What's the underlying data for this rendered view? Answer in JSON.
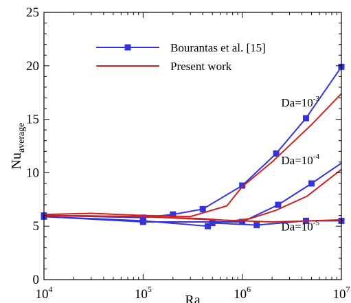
{
  "chart_data": {
    "type": "line",
    "xlabel": "Ra",
    "ylabel": "Nu",
    "ylabel_subscript": "average",
    "xscale": "log",
    "xlim": [
      10000,
      10000000
    ],
    "ylim": [
      0,
      25
    ],
    "grid": false,
    "legend_placement": "top-left",
    "x_ticks": [
      {
        "base": "10",
        "exp": "4",
        "value": 10000
      },
      {
        "base": "10",
        "exp": "5",
        "value": 100000
      },
      {
        "base": "10",
        "exp": "6",
        "value": 1000000
      },
      {
        "base": "10",
        "exp": "7",
        "value": 10000000
      }
    ],
    "y_ticks": [
      "0",
      "5",
      "10",
      "15",
      "20",
      "25"
    ],
    "legend": [
      {
        "label": "Bourantas et al. [15]",
        "color": "#3333dd",
        "marker": "square"
      },
      {
        "label": "Present work",
        "color": "#cc2222",
        "marker": "none"
      }
    ],
    "annotations": [
      {
        "base": "Da=10",
        "exp": "-3",
        "at": [
          6000000,
          16.2
        ]
      },
      {
        "base": "Da=10",
        "exp": "-4",
        "at": [
          6000000,
          10.8
        ]
      },
      {
        "base": "Da=10",
        "exp": "-5",
        "at": [
          6000000,
          4.6
        ]
      }
    ],
    "series": [
      {
        "name": "Bourantas et al. [15]",
        "group": "Da=10^-3",
        "color": "#3333dd",
        "marker": "square",
        "x": [
          10000,
          100000,
          200000,
          400000,
          1000000,
          2200000,
          4400000,
          10000000
        ],
        "y": [
          6.0,
          5.8,
          6.1,
          6.6,
          8.8,
          11.8,
          15.1,
          19.9
        ]
      },
      {
        "name": "Bourantas et al. [15]",
        "group": "Da=10^-4",
        "color": "#3333dd",
        "marker": "square",
        "x": [
          10000,
          100000,
          1000000,
          2300000,
          5000000,
          10000000
        ],
        "y": [
          5.9,
          5.4,
          5.4,
          7.0,
          9.0,
          10.9
        ],
        "markers_at": [
          0,
          1,
          2,
          3,
          4
        ]
      },
      {
        "name": "Bourantas et al. [15]",
        "group": "Da=10^-5",
        "color": "#3333dd",
        "marker": "square",
        "x": [
          10000,
          100000,
          450000,
          500000,
          1400000,
          4400000,
          10000000
        ],
        "y": [
          5.9,
          5.5,
          5.0,
          5.3,
          5.1,
          5.5,
          5.5
        ]
      },
      {
        "name": "Present work",
        "group": "Da=10^-3",
        "color": "#cc2222",
        "marker": "none",
        "x": [
          10000,
          30000,
          100000,
          300000,
          700000,
          1000000,
          2000000,
          5000000,
          10000000
        ],
        "y": [
          6.1,
          6.2,
          6.0,
          5.9,
          6.9,
          8.7,
          11.0,
          14.5,
          17.4
        ]
      },
      {
        "name": "Present work",
        "group": "Da=10^-4",
        "color": "#cc2222",
        "marker": "none",
        "x": [
          10000,
          100000,
          400000,
          800000,
          1200000,
          2200000,
          4500000,
          10000000
        ],
        "y": [
          6.0,
          5.9,
          5.7,
          5.5,
          5.7,
          6.5,
          7.8,
          10.3
        ]
      },
      {
        "name": "Present work",
        "group": "Da=10^-5",
        "color": "#cc2222",
        "marker": "none",
        "x": [
          10000,
          100000,
          500000,
          1000000,
          2000000,
          5000000,
          10000000
        ],
        "y": [
          6.0,
          5.9,
          5.6,
          5.5,
          5.4,
          5.5,
          5.6
        ]
      }
    ]
  }
}
